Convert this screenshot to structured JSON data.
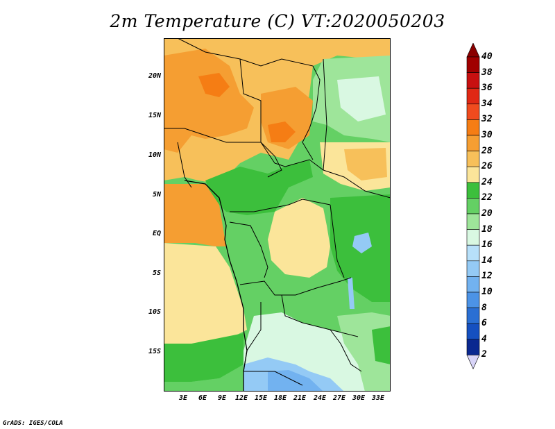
{
  "title": "2m Temperature (C) VT:2020050203",
  "credit": "GrADS: IGES/COLA",
  "map": {
    "region": "Central Africa",
    "lat_labels": [
      "20N",
      "15N",
      "10N",
      "5N",
      "EQ",
      "5S",
      "10S",
      "15S"
    ],
    "lon_labels": [
      "3E",
      "6E",
      "9E",
      "12E",
      "15E",
      "18E",
      "21E",
      "24E",
      "27E",
      "30E",
      "33E"
    ]
  },
  "colorbar": {
    "labels": [
      "40",
      "38",
      "36",
      "34",
      "32",
      "30",
      "28",
      "26",
      "24",
      "22",
      "20",
      "18",
      "16",
      "14",
      "12",
      "10",
      "8",
      "6",
      "4",
      "2"
    ],
    "colors": [
      "#a00000",
      "#c81010",
      "#e02814",
      "#f04b1e",
      "#f57d14",
      "#f59e32",
      "#f7c05a",
      "#fbe59a",
      "#3cbf3c",
      "#64d064",
      "#9ee59a",
      "#d9f8e2",
      "#b7e0fa",
      "#94caf5",
      "#72b2f0",
      "#4c93e6",
      "#2a6fd3",
      "#1550c0",
      "#0a2890"
    ],
    "upper_arrow_color": "#8a0000",
    "lower_arrow_color": "#d8d4f8"
  }
}
